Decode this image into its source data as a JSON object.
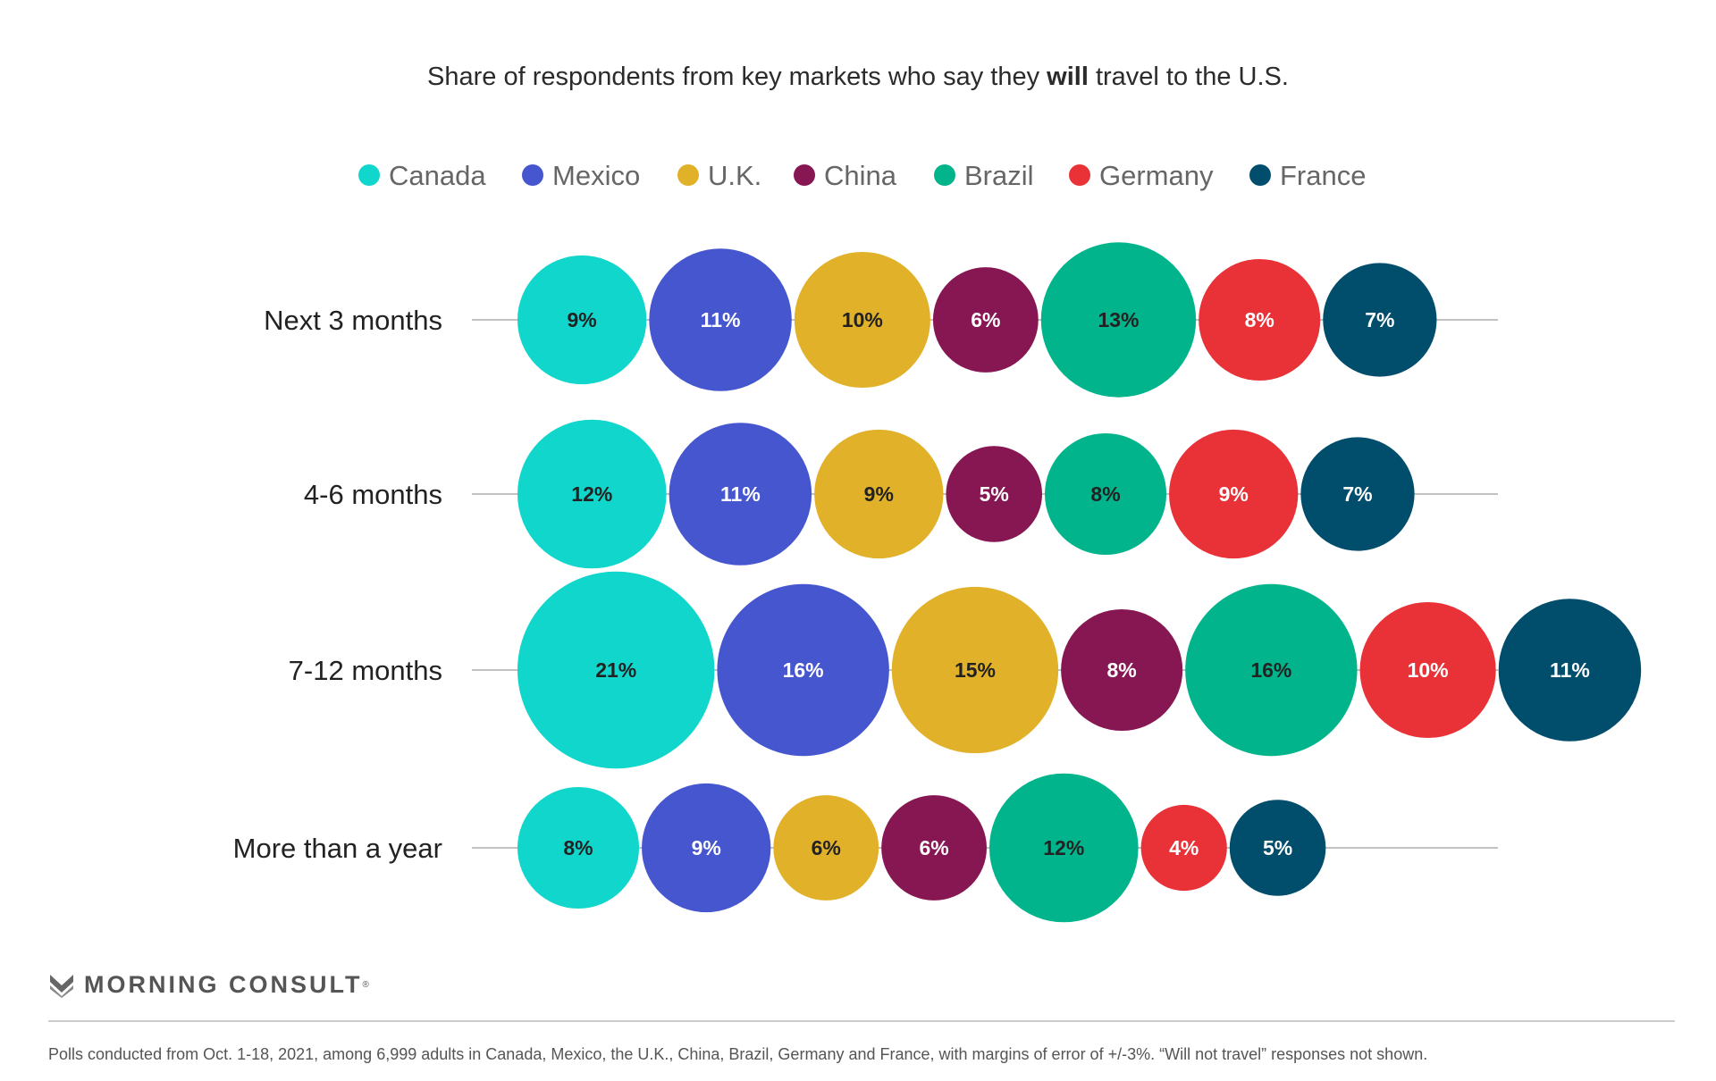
{
  "chart_data": {
    "type": "bubble",
    "title": {
      "before": "Share of respondents from key markets who say they ",
      "bold": "will",
      "after": " travel to the U.S."
    },
    "value_format": "{v}%",
    "series": [
      {
        "name": "Canada",
        "color": "#11d6cc",
        "label_color": "#222222"
      },
      {
        "name": "Mexico",
        "color": "#4656cf",
        "label_color": "#ffffff"
      },
      {
        "name": "U.K.",
        "color": "#e1b12a",
        "label_color": "#222222"
      },
      {
        "name": "China",
        "color": "#861753",
        "label_color": "#ffffff"
      },
      {
        "name": "Brazil",
        "color": "#01b48b",
        "label_color": "#222222"
      },
      {
        "name": "Germany",
        "color": "#e83237",
        "label_color": "#ffffff"
      },
      {
        "name": "France",
        "color": "#014d6c",
        "label_color": "#ffffff"
      }
    ],
    "categories": [
      "Next 3 months",
      "4-6 months",
      "7-12 months",
      "More than a year"
    ],
    "values": [
      [
        9,
        11,
        10,
        6,
        13,
        8,
        7
      ],
      [
        12,
        11,
        9,
        5,
        8,
        9,
        7
      ],
      [
        21,
        16,
        15,
        8,
        16,
        10,
        11
      ],
      [
        8,
        9,
        6,
        6,
        12,
        4,
        5
      ]
    ],
    "legend_position": "top"
  },
  "branding": {
    "logo_text": "MORNING CONSULT",
    "logo_mark": "®"
  },
  "footnote": "Polls conducted from Oct. 1-18, 2021, among 6,999 adults in Canada, Mexico, the U.K., China, Brazil, Germany and France, with margins of error of +/-3%. “Will not travel” responses not shown."
}
